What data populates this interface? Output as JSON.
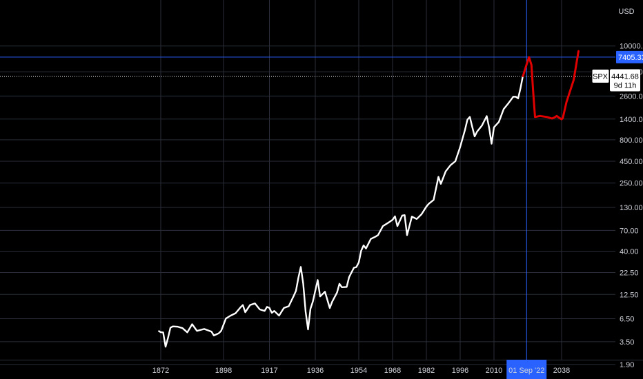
{
  "currency_label": "USD",
  "symbol_badge": {
    "symbol": "SPX",
    "price": "4441.68",
    "countdown": "9d 11h"
  },
  "crosshair": {
    "price_label": "7405.33",
    "date_label": "01 Sep '22"
  },
  "colors": {
    "background": "#000000",
    "grid": "#2a2e39",
    "price_line": "#ffffff",
    "drawing": "#e00000",
    "crosshair": "#2962ff",
    "label_bg": "#2962ff"
  },
  "chart_data": {
    "type": "line",
    "scale": "log",
    "grid": true,
    "ylim": [
      1.2,
      10000
    ],
    "xlim": [
      1865,
      2049
    ],
    "y_ticks": [
      "10000.00",
      "5000.00",
      "2600.00",
      "1400.00",
      "800.00",
      "450.00",
      "250.00",
      "130.00",
      "70.00",
      "40.00",
      "22.50",
      "12.50",
      "6.50",
      "3.50",
      "1.90"
    ],
    "x_ticks": [
      "1872",
      "1898",
      "1917",
      "1936",
      "1954",
      "1968",
      "1982",
      "1996",
      "2010",
      "2038"
    ],
    "series": [
      {
        "x": [
          1871,
          1872,
          1873,
          1874,
          1875,
          1876,
          1877,
          1879,
          1881,
          1883,
          1885,
          1887,
          1890,
          1893,
          1894,
          1896,
          1897,
          1899,
          1901,
          1903,
          1905,
          1906,
          1907,
          1909,
          1911,
          1913,
          1915,
          1916,
          1917,
          1918,
          1919,
          1921,
          1923,
          1925,
          1927,
          1928,
          1929,
          1930,
          1931,
          1932,
          1933,
          1934,
          1935,
          1937,
          1938,
          1940,
          1942,
          1943,
          1945,
          1946,
          1947,
          1949,
          1950,
          1952,
          1953,
          1954,
          1955,
          1956,
          1957,
          1959,
          1961,
          1962,
          1964,
          1966,
          1968,
          1969,
          1970,
          1972,
          1973,
          1974,
          1976,
          1978,
          1980,
          1982,
          1983,
          1985,
          1987,
          1988,
          1990,
          1992,
          1994,
          1996,
          1998,
          1999,
          2000,
          2001,
          2002,
          2003,
          2005,
          2007,
          2008,
          2009,
          2010,
          2012,
          2014,
          2016,
          2018,
          2019,
          2020,
          2021,
          2022
        ],
        "values": [
          4.7,
          4.6,
          4.4,
          3.1,
          3.9,
          5.0,
          5.4,
          5.2,
          5.0,
          4.6,
          5.5,
          4.7,
          5.0,
          4.5,
          4.2,
          4.4,
          4.6,
          6.7,
          7.0,
          7.5,
          9.0,
          9.2,
          7.8,
          9.5,
          9.6,
          8.5,
          8.0,
          8.8,
          8.9,
          7.5,
          8.0,
          7.2,
          8.5,
          9.2,
          12.0,
          13.5,
          20.0,
          26.0,
          16.5,
          8.0,
          4.8,
          8.5,
          10.5,
          18.0,
          12.0,
          13.5,
          8.5,
          10.5,
          13.0,
          16.5,
          15.5,
          15.0,
          20.0,
          26.0,
          25.5,
          30.0,
          40.5,
          46.0,
          44.0,
          55.0,
          59.0,
          63.0,
          77.0,
          86.0,
          94.0,
          100.0,
          80.0,
          104.0,
          104.0,
          63.0,
          100.0,
          95.0,
          110.0,
          130.0,
          145.0,
          160.0,
          290.0,
          250.0,
          340.0,
          400.0,
          460.0,
          650.0,
          1050.0,
          1400.0,
          1450.0,
          1150.0,
          880.0,
          980.0,
          1200.0,
          1500.0,
          1100.0,
          735.0,
          1100.0,
          1300.0,
          1850.0,
          2100.0,
          2600.0,
          2550.0,
          2400.0,
          3300.0,
          4441.68
        ]
      }
    ],
    "drawing": {
      "x": [
        2022,
        2023.5,
        2024.5,
        2025.5,
        2026.2,
        2027,
        2029,
        2032,
        2034,
        2035,
        2036,
        2037,
        2038,
        2038.5,
        2040,
        2043,
        2045
      ],
      "values": [
        4441.68,
        6100,
        7405.33,
        6000,
        3000,
        1480,
        1520,
        1480,
        1420,
        1460,
        1520,
        1450,
        1390,
        1440,
        2200,
        4000,
        8700
      ]
    }
  }
}
